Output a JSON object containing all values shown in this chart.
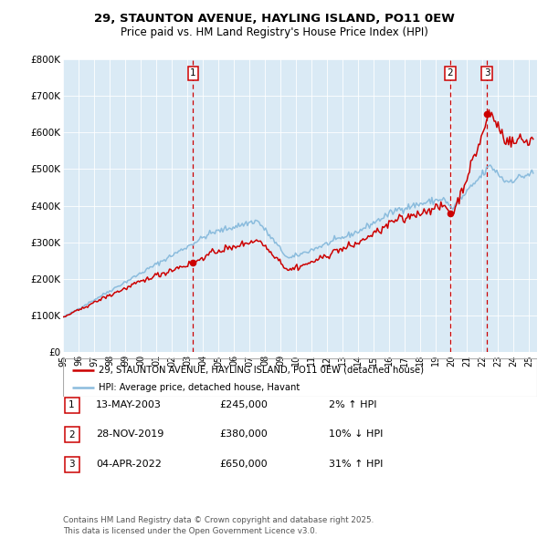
{
  "title_line1": "29, STAUNTON AVENUE, HAYLING ISLAND, PO11 0EW",
  "title_line2": "Price paid vs. HM Land Registry's House Price Index (HPI)",
  "hpi_color": "#8BBCDD",
  "price_color": "#CC0000",
  "plot_bg_color": "#DAEAF5",
  "ylim": [
    0,
    800000
  ],
  "yticks": [
    0,
    100000,
    200000,
    300000,
    400000,
    500000,
    600000,
    700000,
    800000
  ],
  "ytick_labels": [
    "£0",
    "£100K",
    "£200K",
    "£300K",
    "£400K",
    "£500K",
    "£600K",
    "£700K",
    "£800K"
  ],
  "sale_year_vals": [
    2003.37,
    2019.92,
    2022.27
  ],
  "sale_prices": [
    245000,
    380000,
    650000
  ],
  "sale_labels": [
    "1",
    "2",
    "3"
  ],
  "legend_line1": "29, STAUNTON AVENUE, HAYLING ISLAND, PO11 0EW (detached house)",
  "legend_line2": "HPI: Average price, detached house, Havant",
  "table_entries": [
    {
      "num": "1",
      "date": "13-MAY-2003",
      "price": "£245,000",
      "hpi": "2% ↑ HPI"
    },
    {
      "num": "2",
      "date": "28-NOV-2019",
      "price": "£380,000",
      "hpi": "10% ↓ HPI"
    },
    {
      "num": "3",
      "date": "04-APR-2022",
      "price": "£650,000",
      "hpi": "31% ↑ HPI"
    }
  ],
  "footer": "Contains HM Land Registry data © Crown copyright and database right 2025.\nThis data is licensed under the Open Government Licence v3.0."
}
